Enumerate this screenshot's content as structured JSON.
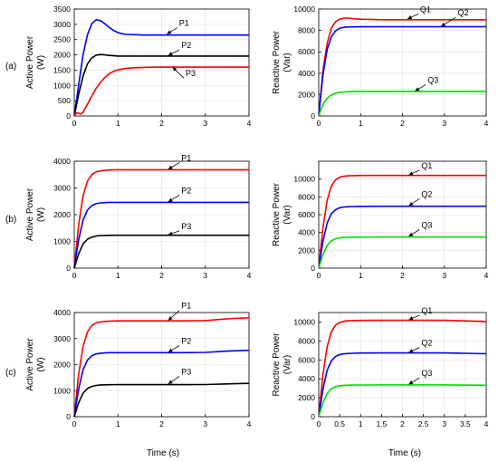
{
  "row_labels": [
    "(a)",
    "(b)",
    "(c)"
  ],
  "x_axis_label": "Time (s)",
  "chart_data": [
    {
      "type": "line",
      "row": "(a)",
      "ylabel": [
        "Active Power",
        "(W)"
      ],
      "xlim": [
        0,
        4
      ],
      "ylim": [
        0,
        3500
      ],
      "xticks": [
        0,
        1,
        2,
        3,
        4
      ],
      "yticks": [
        0,
        500,
        1000,
        1500,
        2000,
        2500,
        3000,
        3500
      ],
      "series": [
        {
          "name": "P1",
          "color": "#0000ff",
          "x": [
            0,
            0.1,
            0.2,
            0.3,
            0.4,
            0.5,
            0.6,
            0.7,
            0.8,
            0.9,
            1.0,
            1.1,
            1.2,
            1.4,
            1.6,
            1.8,
            2.0,
            4.0
          ],
          "y": [
            0,
            1000,
            2000,
            2650,
            3020,
            3150,
            3120,
            3020,
            2900,
            2800,
            2730,
            2690,
            2670,
            2660,
            2650,
            2650,
            2650,
            2650
          ]
        },
        {
          "name": "P2",
          "color": "#000000",
          "x": [
            0,
            0.1,
            0.2,
            0.3,
            0.4,
            0.5,
            0.6,
            0.7,
            0.8,
            1.0,
            1.2,
            1.5,
            4.0
          ],
          "y": [
            0,
            700,
            1300,
            1700,
            1900,
            1990,
            2010,
            2000,
            1980,
            1960,
            1960,
            1960,
            1960
          ]
        },
        {
          "name": "P3",
          "color": "#ff0000",
          "x": [
            0,
            0.05,
            0.1,
            0.15,
            0.2,
            0.3,
            0.4,
            0.5,
            0.6,
            0.7,
            0.8,
            0.9,
            1.0,
            1.2,
            1.4,
            1.6,
            1.8,
            2.0,
            4.0
          ],
          "y": [
            0,
            100,
            90,
            60,
            120,
            380,
            650,
            900,
            1100,
            1260,
            1380,
            1460,
            1510,
            1560,
            1580,
            1590,
            1600,
            1600,
            1600
          ]
        }
      ],
      "annotations": [
        {
          "text": "P1",
          "x": 2.4,
          "y": 2950,
          "ax": 2.12,
          "ay": 2680
        },
        {
          "text": "P2",
          "x": 2.45,
          "y": 2220,
          "ax": 2.15,
          "ay": 1980
        },
        {
          "text": "P3",
          "x": 2.55,
          "y": 1300,
          "ax": 2.25,
          "ay": 1600
        }
      ]
    },
    {
      "type": "line",
      "row": "(a)",
      "ylabel": [
        "Reactive Power",
        "(Var)"
      ],
      "xlim": [
        0,
        4
      ],
      "ylim": [
        0,
        10000
      ],
      "xticks": [
        0,
        1,
        2,
        3,
        4
      ],
      "yticks": [
        0,
        2000,
        4000,
        6000,
        8000,
        10000
      ],
      "series": [
        {
          "name": "Q1",
          "color": "#ff0000",
          "x": [
            0,
            0.1,
            0.2,
            0.3,
            0.4,
            0.5,
            0.6,
            0.7,
            0.8,
            1.0,
            1.5,
            2.0,
            4.0
          ],
          "y": [
            0,
            4200,
            6800,
            8200,
            8800,
            9050,
            9150,
            9150,
            9100,
            9050,
            9000,
            9000,
            9000
          ]
        },
        {
          "name": "Q2",
          "color": "#0000ff",
          "x": [
            0,
            0.1,
            0.2,
            0.3,
            0.4,
            0.5,
            0.6,
            0.7,
            0.8,
            1.0,
            1.5,
            2.0,
            4.0
          ],
          "y": [
            0,
            3800,
            6200,
            7400,
            7950,
            8200,
            8300,
            8320,
            8330,
            8340,
            8350,
            8350,
            8350
          ]
        },
        {
          "name": "Q3",
          "color": "#00dd00",
          "x": [
            0,
            0.1,
            0.2,
            0.3,
            0.4,
            0.5,
            0.6,
            0.8,
            1.0,
            1.5,
            4.0
          ],
          "y": [
            0,
            1050,
            1650,
            1950,
            2120,
            2200,
            2250,
            2280,
            2300,
            2300,
            2300
          ]
        }
      ],
      "annotations": [
        {
          "text": "Q1",
          "x": 2.42,
          "y": 9700,
          "ax": 2.12,
          "ay": 9080
        },
        {
          "text": "Q2",
          "x": 3.32,
          "y": 9400,
          "ax": 2.92,
          "ay": 8380
        },
        {
          "text": "Q3",
          "x": 2.6,
          "y": 3100,
          "ax": 2.3,
          "ay": 2330
        }
      ]
    },
    {
      "type": "line",
      "row": "(b)",
      "ylabel": [
        "Active Power",
        "(W)"
      ],
      "xlim": [
        0,
        4
      ],
      "ylim": [
        0,
        4000
      ],
      "xticks": [
        0,
        1,
        2,
        3,
        4
      ],
      "yticks": [
        0,
        1000,
        2000,
        3000,
        4000
      ],
      "series": [
        {
          "name": "P1",
          "color": "#ff0000",
          "x": [
            0,
            0.1,
            0.2,
            0.3,
            0.4,
            0.5,
            0.6,
            0.7,
            0.8,
            1.0,
            1.2,
            1.5,
            2.0,
            4.0
          ],
          "y": [
            0,
            1600,
            2700,
            3250,
            3500,
            3600,
            3640,
            3660,
            3670,
            3680,
            3680,
            3680,
            3680,
            3680
          ]
        },
        {
          "name": "P2",
          "color": "#0000ff",
          "x": [
            0,
            0.1,
            0.2,
            0.3,
            0.4,
            0.5,
            0.6,
            0.7,
            0.8,
            1.0,
            1.5,
            2.0,
            4.0
          ],
          "y": [
            0,
            1050,
            1800,
            2170,
            2340,
            2410,
            2440,
            2450,
            2460,
            2460,
            2460,
            2460,
            2460
          ]
        },
        {
          "name": "P3",
          "color": "#000000",
          "x": [
            0,
            0.1,
            0.2,
            0.3,
            0.4,
            0.5,
            0.6,
            0.7,
            0.8,
            1.0,
            1.5,
            2.0,
            4.0
          ],
          "y": [
            0,
            530,
            900,
            1080,
            1160,
            1200,
            1220,
            1225,
            1228,
            1230,
            1230,
            1230,
            1230
          ]
        }
      ],
      "annotations": [
        {
          "text": "P1",
          "x": 2.45,
          "y": 4020,
          "ax": 2.15,
          "ay": 3700
        },
        {
          "text": "P2",
          "x": 2.45,
          "y": 2800,
          "ax": 2.15,
          "ay": 2480
        },
        {
          "text": "P3",
          "x": 2.45,
          "y": 1460,
          "ax": 2.15,
          "ay": 1250
        }
      ]
    },
    {
      "type": "line",
      "row": "(b)",
      "ylabel": [
        "Reactive Power",
        "(Var)"
      ],
      "xlim": [
        0,
        4
      ],
      "ylim": [
        0,
        12000
      ],
      "xticks": [
        0,
        1,
        2,
        3,
        4
      ],
      "yticks": [
        0,
        2000,
        4000,
        6000,
        8000,
        10000
      ],
      "series": [
        {
          "name": "Q1",
          "color": "#ff0000",
          "x": [
            0,
            0.1,
            0.2,
            0.3,
            0.4,
            0.5,
            0.6,
            0.7,
            0.8,
            1.0,
            1.5,
            2.0,
            4.0
          ],
          "y": [
            0,
            4500,
            7600,
            9200,
            9900,
            10200,
            10320,
            10360,
            10380,
            10400,
            10400,
            10400,
            10400
          ]
        },
        {
          "name": "Q2",
          "color": "#0000ff",
          "x": [
            0,
            0.1,
            0.2,
            0.3,
            0.4,
            0.5,
            0.6,
            0.7,
            0.8,
            1.0,
            1.5,
            2.0,
            4.0
          ],
          "y": [
            0,
            3000,
            5050,
            6100,
            6550,
            6780,
            6860,
            6900,
            6920,
            6940,
            6950,
            6950,
            6950
          ]
        },
        {
          "name": "Q3",
          "color": "#00dd00",
          "x": [
            0,
            0.1,
            0.2,
            0.3,
            0.4,
            0.5,
            0.6,
            0.7,
            0.8,
            1.0,
            1.5,
            2.0,
            4.0
          ],
          "y": [
            0,
            1500,
            2550,
            3050,
            3300,
            3400,
            3450,
            3470,
            3480,
            3490,
            3500,
            3500,
            3500
          ]
        }
      ],
      "annotations": [
        {
          "text": "Q1",
          "x": 2.45,
          "y": 11200,
          "ax": 2.15,
          "ay": 10450
        },
        {
          "text": "Q2",
          "x": 2.45,
          "y": 8000,
          "ax": 2.15,
          "ay": 7000
        },
        {
          "text": "Q3",
          "x": 2.45,
          "y": 4550,
          "ax": 2.15,
          "ay": 3560
        }
      ]
    },
    {
      "type": "line",
      "row": "(c)",
      "ylabel": [
        "Active Power",
        "(W)"
      ],
      "xlim": [
        0,
        4
      ],
      "ylim": [
        0,
        4000
      ],
      "xticks": [
        0,
        1,
        2,
        3,
        4
      ],
      "yticks": [
        0,
        1000,
        2000,
        3000,
        4000
      ],
      "series": [
        {
          "name": "P1",
          "color": "#ff0000",
          "x": [
            0,
            0.1,
            0.2,
            0.3,
            0.4,
            0.5,
            0.6,
            0.7,
            0.8,
            1.0,
            1.5,
            2.0,
            2.5,
            3.0,
            3.5,
            4.0
          ],
          "y": [
            0,
            1600,
            2700,
            3250,
            3500,
            3600,
            3640,
            3660,
            3670,
            3680,
            3680,
            3680,
            3680,
            3690,
            3760,
            3800
          ]
        },
        {
          "name": "P2",
          "color": "#0000ff",
          "x": [
            0,
            0.1,
            0.2,
            0.3,
            0.4,
            0.5,
            0.6,
            0.7,
            0.8,
            1.0,
            1.5,
            2.0,
            2.5,
            3.0,
            3.5,
            4.0
          ],
          "y": [
            0,
            1050,
            1800,
            2170,
            2340,
            2410,
            2440,
            2450,
            2460,
            2460,
            2460,
            2460,
            2460,
            2470,
            2520,
            2550
          ]
        },
        {
          "name": "P3",
          "color": "#000000",
          "x": [
            0,
            0.1,
            0.2,
            0.3,
            0.4,
            0.5,
            0.6,
            0.7,
            0.8,
            1.0,
            1.5,
            2.0,
            2.5,
            3.0,
            3.5,
            4.0
          ],
          "y": [
            0,
            530,
            900,
            1080,
            1160,
            1200,
            1220,
            1225,
            1228,
            1230,
            1230,
            1230,
            1230,
            1235,
            1260,
            1280
          ]
        }
      ],
      "annotations": [
        {
          "text": "P1",
          "x": 2.45,
          "y": 4150,
          "ax": 2.15,
          "ay": 3700
        },
        {
          "text": "P2",
          "x": 2.45,
          "y": 2800,
          "ax": 2.15,
          "ay": 2480
        },
        {
          "text": "P3",
          "x": 2.45,
          "y": 1620,
          "ax": 2.15,
          "ay": 1260
        }
      ]
    },
    {
      "type": "line",
      "row": "(c)",
      "ylabel": [
        "Reactive Power",
        "(Var)"
      ],
      "xlim": [
        0,
        4
      ],
      "ylim": [
        0,
        11000
      ],
      "xticks": [
        0,
        0.5,
        1,
        1.5,
        2,
        2.5,
        3,
        3.5,
        4
      ],
      "yticks": [
        0,
        2000,
        4000,
        6000,
        8000,
        10000
      ],
      "series": [
        {
          "name": "Q1",
          "color": "#ff0000",
          "x": [
            0,
            0.1,
            0.2,
            0.3,
            0.4,
            0.5,
            0.6,
            0.7,
            0.8,
            1.0,
            1.5,
            2.0,
            2.5,
            3.0,
            3.5,
            4.0
          ],
          "y": [
            0,
            4400,
            7400,
            8950,
            9650,
            9950,
            10080,
            10130,
            10150,
            10170,
            10180,
            10180,
            10180,
            10180,
            10120,
            10050
          ]
        },
        {
          "name": "Q2",
          "color": "#0000ff",
          "x": [
            0,
            0.1,
            0.2,
            0.3,
            0.4,
            0.5,
            0.6,
            0.7,
            0.8,
            1.0,
            1.5,
            2.0,
            2.5,
            3.0,
            3.5,
            4.0
          ],
          "y": [
            0,
            2900,
            4900,
            5900,
            6350,
            6560,
            6640,
            6680,
            6700,
            6720,
            6730,
            6730,
            6730,
            6730,
            6700,
            6650
          ]
        },
        {
          "name": "Q3",
          "color": "#00dd00",
          "x": [
            0,
            0.1,
            0.2,
            0.3,
            0.4,
            0.5,
            0.6,
            0.7,
            0.8,
            1.0,
            1.5,
            2.0,
            2.5,
            3.0,
            3.5,
            4.0
          ],
          "y": [
            0,
            1450,
            2450,
            2950,
            3170,
            3270,
            3310,
            3330,
            3340,
            3350,
            3360,
            3360,
            3360,
            3360,
            3340,
            3320
          ]
        }
      ],
      "annotations": [
        {
          "text": "Q1",
          "x": 2.45,
          "y": 10900,
          "ax": 2.15,
          "ay": 10230
        },
        {
          "text": "Q2",
          "x": 2.45,
          "y": 7500,
          "ax": 2.15,
          "ay": 6780
        },
        {
          "text": "Q3",
          "x": 2.45,
          "y": 4300,
          "ax": 2.15,
          "ay": 3420
        }
      ]
    }
  ]
}
